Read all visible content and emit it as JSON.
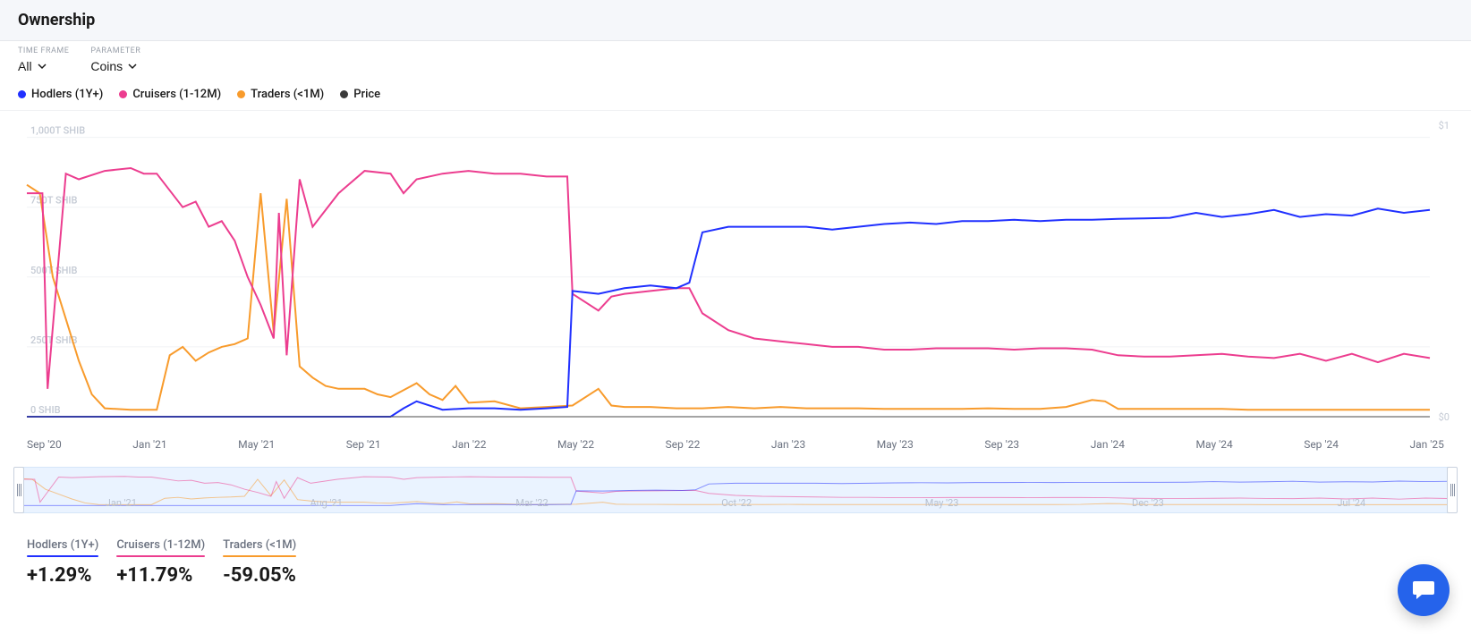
{
  "header": {
    "title": "Ownership"
  },
  "controls": {
    "timeframe": {
      "label": "TIME FRAME",
      "value": "All"
    },
    "parameter": {
      "label": "PARAMETER",
      "value": "Coins"
    }
  },
  "legend": [
    {
      "name": "Hodlers (1Y+)",
      "color": "#2030ff"
    },
    {
      "name": "Cruisers (1-12M)",
      "color": "#ec3d8f"
    },
    {
      "name": "Traders (<1M)",
      "color": "#f89b2c"
    },
    {
      "name": "Price",
      "color": "#3a3a3a"
    }
  ],
  "colors": {
    "hodlers": "#2030ff",
    "cruisers": "#ec3d8f",
    "traders": "#f89b2c",
    "price": "#3a3a3a",
    "grid": "#f1f2f5",
    "axis_text": "#c4cad4",
    "x_axis_text": "#6b7280",
    "background": "#ffffff",
    "overview_bg": "#eaf3ff",
    "chat_bg": "#2563eb"
  },
  "chart": {
    "y_axis": {
      "unit": "SHIB",
      "min": 0,
      "max": 1050,
      "ticks": [
        {
          "v": 0,
          "label": "0 SHIB"
        },
        {
          "v": 250,
          "label": "250T SHIB"
        },
        {
          "v": 500,
          "label": "500T SHIB"
        },
        {
          "v": 750,
          "label": "750T SHIB"
        },
        {
          "v": 1000,
          "label": "1,000T SHIB"
        }
      ]
    },
    "price_axis": {
      "top_label": "$1",
      "bottom_label": "$0"
    },
    "x_axis": {
      "min": 0,
      "max": 54,
      "labels": [
        "Sep '20",
        "Jan '21",
        "May '21",
        "Sep '21",
        "Jan '22",
        "May '22",
        "Sep '22",
        "Jan '23",
        "May '23",
        "Sep '23",
        "Jan '24",
        "May '24",
        "Sep '24",
        "Jan '25"
      ]
    },
    "series": {
      "hodlers": [
        [
          0,
          0
        ],
        [
          14,
          0
        ],
        [
          14.5,
          30
        ],
        [
          15,
          55
        ],
        [
          16,
          25
        ],
        [
          17,
          30
        ],
        [
          18,
          30
        ],
        [
          19,
          25
        ],
        [
          20,
          30
        ],
        [
          20.8,
          35
        ],
        [
          21,
          450
        ],
        [
          22,
          440
        ],
        [
          23,
          460
        ],
        [
          24,
          470
        ],
        [
          25,
          460
        ],
        [
          25.5,
          480
        ],
        [
          26,
          660
        ],
        [
          27,
          680
        ],
        [
          28,
          680
        ],
        [
          29,
          680
        ],
        [
          30,
          680
        ],
        [
          31,
          670
        ],
        [
          32,
          680
        ],
        [
          33,
          690
        ],
        [
          34,
          695
        ],
        [
          35,
          690
        ],
        [
          36,
          700
        ],
        [
          37,
          700
        ],
        [
          38,
          705
        ],
        [
          39,
          700
        ],
        [
          40,
          705
        ],
        [
          41,
          705
        ],
        [
          42,
          708
        ],
        [
          43,
          710
        ],
        [
          44,
          712
        ],
        [
          45,
          730
        ],
        [
          46,
          715
        ],
        [
          47,
          725
        ],
        [
          48,
          740
        ],
        [
          49,
          715
        ],
        [
          50,
          725
        ],
        [
          51,
          720
        ],
        [
          52,
          745
        ],
        [
          53,
          730
        ],
        [
          54,
          740
        ]
      ],
      "cruisers": [
        [
          0,
          800
        ],
        [
          0.6,
          800
        ],
        [
          0.8,
          100
        ],
        [
          1.5,
          870
        ],
        [
          2,
          850
        ],
        [
          3,
          880
        ],
        [
          4,
          890
        ],
        [
          4.5,
          870
        ],
        [
          5,
          870
        ],
        [
          6,
          750
        ],
        [
          6.5,
          770
        ],
        [
          7,
          680
        ],
        [
          7.5,
          700
        ],
        [
          8,
          630
        ],
        [
          8.5,
          500
        ],
        [
          9,
          400
        ],
        [
          9.5,
          280
        ],
        [
          9.7,
          730
        ],
        [
          10,
          220
        ],
        [
          10.5,
          850
        ],
        [
          11,
          680
        ],
        [
          12,
          800
        ],
        [
          13,
          880
        ],
        [
          14,
          870
        ],
        [
          14.5,
          800
        ],
        [
          15,
          850
        ],
        [
          16,
          870
        ],
        [
          17,
          880
        ],
        [
          18,
          870
        ],
        [
          19,
          870
        ],
        [
          20,
          860
        ],
        [
          20.8,
          860
        ],
        [
          21,
          440
        ],
        [
          22,
          380
        ],
        [
          22.5,
          430
        ],
        [
          23,
          440
        ],
        [
          24,
          450
        ],
        [
          25,
          460
        ],
        [
          25.5,
          460
        ],
        [
          26,
          370
        ],
        [
          27,
          310
        ],
        [
          28,
          280
        ],
        [
          29,
          270
        ],
        [
          30,
          260
        ],
        [
          31,
          250
        ],
        [
          32,
          250
        ],
        [
          33,
          240
        ],
        [
          34,
          240
        ],
        [
          35,
          245
        ],
        [
          36,
          245
        ],
        [
          37,
          245
        ],
        [
          38,
          240
        ],
        [
          39,
          245
        ],
        [
          40,
          245
        ],
        [
          41,
          240
        ],
        [
          42,
          220
        ],
        [
          43,
          215
        ],
        [
          44,
          215
        ],
        [
          45,
          220
        ],
        [
          46,
          225
        ],
        [
          47,
          215
        ],
        [
          48,
          210
        ],
        [
          49,
          225
        ],
        [
          50,
          200
        ],
        [
          51,
          225
        ],
        [
          52,
          195
        ],
        [
          53,
          225
        ],
        [
          54,
          210
        ]
      ],
      "traders": [
        [
          0,
          830
        ],
        [
          0.5,
          800
        ],
        [
          1,
          500
        ],
        [
          1.5,
          350
        ],
        [
          2,
          200
        ],
        [
          2.5,
          80
        ],
        [
          3,
          30
        ],
        [
          4,
          25
        ],
        [
          5,
          25
        ],
        [
          5.5,
          220
        ],
        [
          6,
          250
        ],
        [
          6.5,
          200
        ],
        [
          7,
          230
        ],
        [
          7.5,
          250
        ],
        [
          8,
          260
        ],
        [
          8.5,
          280
        ],
        [
          9,
          800
        ],
        [
          9.5,
          300
        ],
        [
          10,
          780
        ],
        [
          10.5,
          180
        ],
        [
          11,
          140
        ],
        [
          11.5,
          110
        ],
        [
          12,
          100
        ],
        [
          13,
          100
        ],
        [
          13.5,
          80
        ],
        [
          14,
          70
        ],
        [
          15,
          120
        ],
        [
          15.5,
          80
        ],
        [
          16,
          60
        ],
        [
          16.5,
          110
        ],
        [
          17,
          50
        ],
        [
          18,
          55
        ],
        [
          19,
          30
        ],
        [
          20,
          35
        ],
        [
          21,
          40
        ],
        [
          22,
          100
        ],
        [
          22.5,
          40
        ],
        [
          23,
          35
        ],
        [
          24,
          35
        ],
        [
          25,
          30
        ],
        [
          26,
          30
        ],
        [
          27,
          35
        ],
        [
          28,
          30
        ],
        [
          29,
          35
        ],
        [
          30,
          30
        ],
        [
          31,
          30
        ],
        [
          32,
          30
        ],
        [
          33,
          28
        ],
        [
          34,
          28
        ],
        [
          35,
          28
        ],
        [
          36,
          28
        ],
        [
          37,
          30
        ],
        [
          38,
          28
        ],
        [
          39,
          28
        ],
        [
          40,
          35
        ],
        [
          41,
          60
        ],
        [
          41.5,
          55
        ],
        [
          42,
          28
        ],
        [
          43,
          28
        ],
        [
          44,
          28
        ],
        [
          45,
          28
        ],
        [
          46,
          28
        ],
        [
          47,
          25
        ],
        [
          48,
          25
        ],
        [
          49,
          25
        ],
        [
          50,
          25
        ],
        [
          51,
          25
        ],
        [
          52,
          25
        ],
        [
          53,
          25
        ],
        [
          54,
          25
        ]
      ]
    }
  },
  "overview": {
    "x_labels": [
      "Jan '21",
      "Aug '21",
      "Mar '22",
      "Oct '22",
      "May '23",
      "Dec '23",
      "Jul '24"
    ]
  },
  "stats": [
    {
      "label": "Hodlers (1Y+)",
      "color": "#2030ff",
      "value": "+1.29%"
    },
    {
      "label": "Cruisers (1-12M)",
      "color": "#ec3d8f",
      "value": "+11.79%"
    },
    {
      "label": "Traders (<1M)",
      "color": "#f89b2c",
      "value": "-59.05%"
    }
  ]
}
